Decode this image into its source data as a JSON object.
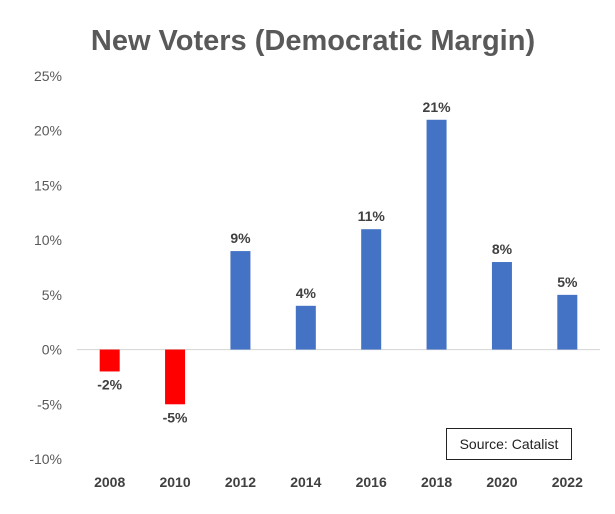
{
  "chart_data": {
    "type": "bar",
    "title": "New Voters (Democratic Margin)",
    "categories": [
      "2008",
      "2010",
      "2012",
      "2014",
      "2016",
      "2018",
      "2020",
      "2022"
    ],
    "values": [
      -2,
      -5,
      9,
      4,
      11,
      21,
      8,
      5
    ],
    "data_labels": [
      "-2%",
      "-5%",
      "9%",
      "4%",
      "11%",
      "21%",
      "8%",
      "5%"
    ],
    "y_ticks": [
      "25%",
      "20%",
      "15%",
      "10%",
      "5%",
      "0%",
      "-5%",
      "-10%"
    ],
    "y_tick_values": [
      25,
      20,
      15,
      10,
      5,
      0,
      -5,
      -10
    ],
    "ylim": [
      -10,
      25
    ],
    "xlabel": "",
    "ylabel": "",
    "grid": false,
    "colors": {
      "positive": "#4472C4",
      "negative": "#FF0000",
      "axis": "#D9D9D9"
    },
    "source_note": "Source: Catalist"
  }
}
